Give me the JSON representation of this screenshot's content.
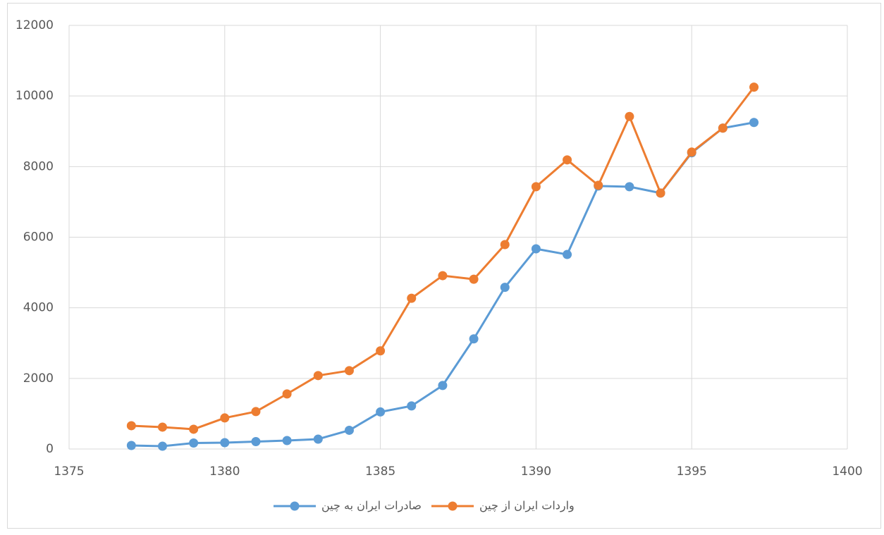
{
  "chart_data": {
    "type": "line",
    "x": [
      1377,
      1378,
      1379,
      1380,
      1381,
      1382,
      1383,
      1384,
      1385,
      1386,
      1387,
      1388,
      1389,
      1390,
      1391,
      1392,
      1393,
      1394,
      1395,
      1396,
      1397
    ],
    "series": [
      {
        "name": "صادرات ایران به چین",
        "color": "#5b9bd5",
        "values": [
          100,
          80,
          170,
          180,
          210,
          240,
          280,
          530,
          1050,
          1220,
          1800,
          3120,
          4580,
          5670,
          5510,
          7450,
          7430,
          7250,
          8390,
          9090,
          9250
        ]
      },
      {
        "name": "واردات ایران از چین",
        "color": "#ed7d31",
        "values": [
          660,
          620,
          560,
          880,
          1060,
          1560,
          2080,
          2220,
          2780,
          4270,
          4910,
          4810,
          5790,
          7430,
          8190,
          7470,
          9420,
          7250,
          8410,
          9090,
          10250
        ]
      }
    ],
    "xlim": [
      1375,
      1400
    ],
    "xticks": [
      1375,
      1380,
      1385,
      1390,
      1395,
      1400
    ],
    "ylim": [
      0,
      12000
    ],
    "yticks": [
      0,
      2000,
      4000,
      6000,
      8000,
      10000,
      12000
    ],
    "grid": true,
    "legend": "bottom"
  }
}
